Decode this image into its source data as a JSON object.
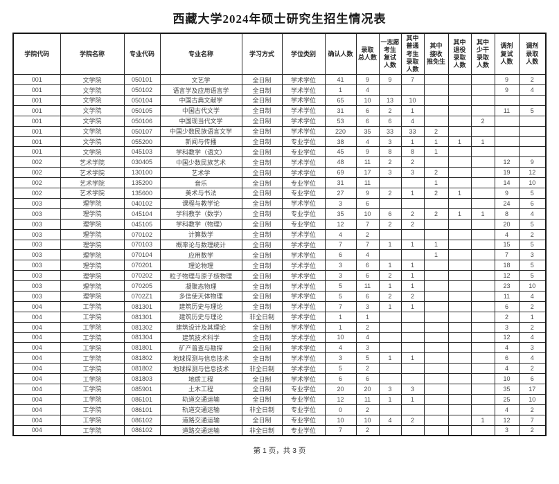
{
  "page": {
    "title": "西藏大学2024年硕士研究生招生情况表",
    "footer": "第 1 页，共 3 页"
  },
  "table": {
    "columns": [
      {
        "label": "学院代码"
      },
      {
        "label": "学院名称"
      },
      {
        "label": "专业代码"
      },
      {
        "label": "专业名称"
      },
      {
        "label": "学习方式"
      },
      {
        "label": "学位类别"
      },
      {
        "label": "确认人数"
      },
      {
        "label": "录取\n总人数"
      },
      {
        "label": "一志愿\n考生\n复试\n人数"
      },
      {
        "label": "其中\n普通\n考生\n录取\n人数"
      },
      {
        "label": "其中\n接收\n推免生"
      },
      {
        "label": "其中\n退役\n录取\n人数"
      },
      {
        "label": "其中\n少干\n录取\n人数"
      },
      {
        "label": "调剂\n复试\n人数"
      },
      {
        "label": "调剂\n录取\n人数"
      }
    ],
    "rows": [
      [
        "001",
        "文学院",
        "050101",
        "文艺学",
        "全日制",
        "学术学位",
        "41",
        "9",
        "9",
        "7",
        "",
        "",
        "",
        "9",
        "2"
      ],
      [
        "001",
        "文学院",
        "050102",
        "语言学及应用语言学",
        "全日制",
        "学术学位",
        "1",
        "4",
        "",
        "",
        "",
        "",
        "",
        "9",
        "4"
      ],
      [
        "001",
        "文学院",
        "050104",
        "中国古典文献学",
        "全日制",
        "学术学位",
        "65",
        "10",
        "13",
        "10",
        "",
        "",
        "",
        "",
        ""
      ],
      [
        "001",
        "文学院",
        "050105",
        "中国古代文学",
        "全日制",
        "学术学位",
        "31",
        "6",
        "2",
        "1",
        "",
        "",
        "",
        "11",
        "5"
      ],
      [
        "001",
        "文学院",
        "050106",
        "中国现当代文学",
        "全日制",
        "学术学位",
        "53",
        "6",
        "6",
        "4",
        "",
        "",
        "2",
        "",
        ""
      ],
      [
        "001",
        "文学院",
        "050107",
        "中国少数民族语言文学",
        "全日制",
        "学术学位",
        "220",
        "35",
        "33",
        "33",
        "2",
        "",
        "",
        "",
        ""
      ],
      [
        "001",
        "文学院",
        "055200",
        "新闻与传播",
        "全日制",
        "专业学位",
        "38",
        "4",
        "3",
        "1",
        "1",
        "1",
        "1",
        "",
        ""
      ],
      [
        "001",
        "文学院",
        "045103",
        "学科教学（语文）",
        "全日制",
        "专业学位",
        "45",
        "9",
        "8",
        "8",
        "1",
        "",
        "",
        "",
        ""
      ],
      [
        "002",
        "艺术学院",
        "030405",
        "中国少数民族艺术",
        "全日制",
        "学术学位",
        "48",
        "11",
        "2",
        "2",
        "",
        "",
        "",
        "12",
        "9"
      ],
      [
        "002",
        "艺术学院",
        "130100",
        "艺术学",
        "全日制",
        "学术学位",
        "69",
        "17",
        "3",
        "3",
        "2",
        "",
        "",
        "19",
        "12"
      ],
      [
        "002",
        "艺术学院",
        "135200",
        "音乐",
        "全日制",
        "专业学位",
        "31",
        "11",
        "",
        "",
        "1",
        "",
        "",
        "14",
        "10"
      ],
      [
        "002",
        "艺术学院",
        "135600",
        "美术与书法",
        "全日制",
        "专业学位",
        "27",
        "9",
        "2",
        "1",
        "2",
        "1",
        "",
        "9",
        "5"
      ],
      [
        "003",
        "理学院",
        "040102",
        "课程与教学论",
        "全日制",
        "学术学位",
        "3",
        "6",
        "",
        "",
        "",
        "",
        "",
        "24",
        "6"
      ],
      [
        "003",
        "理学院",
        "045104",
        "学科教学（数学）",
        "全日制",
        "专业学位",
        "35",
        "10",
        "6",
        "2",
        "2",
        "1",
        "1",
        "8",
        "4"
      ],
      [
        "003",
        "理学院",
        "045105",
        "学科教学（物理）",
        "全日制",
        "专业学位",
        "12",
        "7",
        "2",
        "2",
        "",
        "",
        "",
        "20",
        "5"
      ],
      [
        "003",
        "理学院",
        "070102",
        "计算数学",
        "全日制",
        "学术学位",
        "4",
        "2",
        "",
        "",
        "",
        "",
        "",
        "4",
        "2"
      ],
      [
        "003",
        "理学院",
        "070103",
        "概率论与数理统计",
        "全日制",
        "学术学位",
        "7",
        "7",
        "1",
        "1",
        "1",
        "",
        "",
        "15",
        "5"
      ],
      [
        "003",
        "理学院",
        "070104",
        "应用数学",
        "全日制",
        "学术学位",
        "6",
        "4",
        "",
        "",
        "1",
        "",
        "",
        "7",
        "3"
      ],
      [
        "003",
        "理学院",
        "070201",
        "理论物理",
        "全日制",
        "学术学位",
        "3",
        "6",
        "1",
        "1",
        "",
        "",
        "",
        "18",
        "5"
      ],
      [
        "003",
        "理学院",
        "070202",
        "粒子物理与原子核物理",
        "全日制",
        "学术学位",
        "3",
        "6",
        "2",
        "1",
        "",
        "",
        "",
        "12",
        "5"
      ],
      [
        "003",
        "理学院",
        "070205",
        "凝聚态物理",
        "全日制",
        "学术学位",
        "5",
        "11",
        "1",
        "1",
        "",
        "",
        "",
        "23",
        "10"
      ],
      [
        "003",
        "理学院",
        "0702Z1",
        "多信使天体物理",
        "全日制",
        "学术学位",
        "5",
        "6",
        "2",
        "2",
        "",
        "",
        "",
        "11",
        "4"
      ],
      [
        "004",
        "工学院",
        "081301",
        "建筑历史与理论",
        "全日制",
        "学术学位",
        "7",
        "3",
        "1",
        "1",
        "",
        "",
        "",
        "6",
        "2"
      ],
      [
        "004",
        "工学院",
        "081301",
        "建筑历史与理论",
        "非全日制",
        "学术学位",
        "1",
        "1",
        "",
        "",
        "",
        "",
        "",
        "2",
        "1"
      ],
      [
        "004",
        "工学院",
        "081302",
        "建筑设计及其理论",
        "全日制",
        "学术学位",
        "1",
        "2",
        "",
        "",
        "",
        "",
        "",
        "3",
        "2"
      ],
      [
        "004",
        "工学院",
        "081304",
        "建筑技术科学",
        "全日制",
        "学术学位",
        "10",
        "4",
        "",
        "",
        "",
        "",
        "",
        "12",
        "4"
      ],
      [
        "004",
        "工学院",
        "081801",
        "矿产普查与勘探",
        "全日制",
        "学术学位",
        "4",
        "3",
        "",
        "",
        "",
        "",
        "",
        "4",
        "3"
      ],
      [
        "004",
        "工学院",
        "081802",
        "地球探测与信息技术",
        "全日制",
        "学术学位",
        "3",
        "5",
        "1",
        "1",
        "",
        "",
        "",
        "6",
        "4"
      ],
      [
        "004",
        "工学院",
        "081802",
        "地球探测与信息技术",
        "非全日制",
        "学术学位",
        "5",
        "2",
        "",
        "",
        "",
        "",
        "",
        "4",
        "2"
      ],
      [
        "004",
        "工学院",
        "081803",
        "地质工程",
        "全日制",
        "学术学位",
        "6",
        "6",
        "",
        "",
        "",
        "",
        "",
        "10",
        "6"
      ],
      [
        "004",
        "工学院",
        "085901",
        "土木工程",
        "全日制",
        "专业学位",
        "20",
        "20",
        "3",
        "3",
        "",
        "",
        "",
        "35",
        "17"
      ],
      [
        "004",
        "工学院",
        "086101",
        "轨道交通运输",
        "全日制",
        "专业学位",
        "12",
        "11",
        "1",
        "1",
        "",
        "",
        "",
        "25",
        "10"
      ],
      [
        "004",
        "工学院",
        "086101",
        "轨道交通运输",
        "非全日制",
        "专业学位",
        "0",
        "2",
        "",
        "",
        "",
        "",
        "",
        "4",
        "2"
      ],
      [
        "004",
        "工学院",
        "086102",
        "道路交通运输",
        "全日制",
        "专业学位",
        "10",
        "10",
        "4",
        "2",
        "",
        "",
        "1",
        "12",
        "7"
      ],
      [
        "004",
        "工学院",
        "086102",
        "道路交通运输",
        "非全日制",
        "专业学位",
        "7",
        "2",
        "",
        "",
        "",
        "",
        "",
        "3",
        "2"
      ]
    ]
  }
}
